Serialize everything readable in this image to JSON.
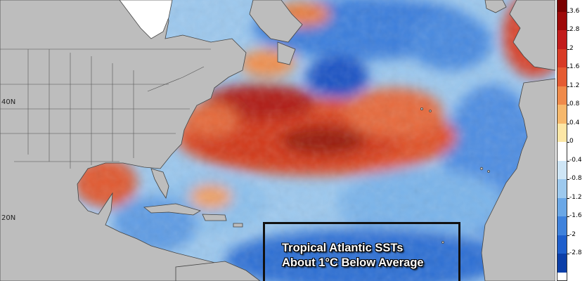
{
  "map": {
    "lat_labels": [
      "40N",
      "20N"
    ],
    "land_color": "#bdbdbd",
    "colorbar": {
      "labels": [
        "3.6",
        "2.8",
        "2",
        "1.6",
        "1.2",
        "0.8",
        "0.4",
        "0",
        "-0.4",
        "-0.8",
        "-1.2",
        "-1.6",
        "-2",
        "-2.8"
      ],
      "colors": [
        "#7a0000",
        "#9e0a0a",
        "#c21c1c",
        "#d83b26",
        "#e55b32",
        "#ef8a4a",
        "#f6b86c",
        "#fde7a6",
        "#ffffff",
        "#cfe6f6",
        "#9dc9ee",
        "#6aa7e6",
        "#3f82dc",
        "#1f5fcc",
        "#0c3fa8"
      ]
    },
    "annotation": {
      "line1": "Tropical Atlantic SSTs",
      "line2": "About 1°C Below Average"
    }
  }
}
